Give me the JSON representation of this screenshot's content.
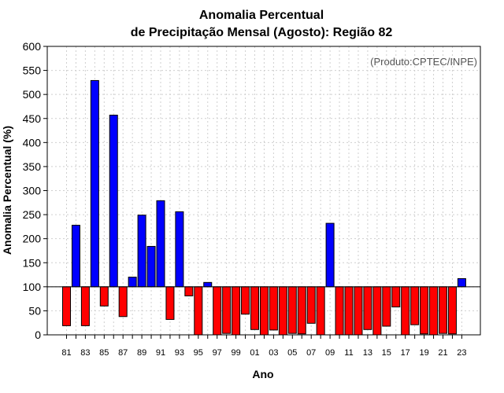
{
  "chart_data": {
    "type": "bar",
    "title_line1": "Anomalia Percentual",
    "title_line2": "de Precipitação Mensal (Agosto): Região 82",
    "source": "(Produto:CPTEC/INPE)",
    "xlabel": "Ano",
    "ylabel": "Anomalia Percentual (%)",
    "ylim": [
      0,
      600
    ],
    "yticks": [
      0,
      50,
      100,
      150,
      200,
      250,
      300,
      350,
      400,
      450,
      500,
      550,
      600
    ],
    "baseline": 100,
    "categories": [
      "81",
      "82",
      "83",
      "84",
      "85",
      "86",
      "87",
      "88",
      "89",
      "90",
      "91",
      "92",
      "93",
      "94",
      "95",
      "96",
      "97",
      "98",
      "99",
      "00",
      "01",
      "02",
      "03",
      "04",
      "05",
      "06",
      "07",
      "08",
      "09",
      "10",
      "11",
      "12",
      "13",
      "14",
      "15",
      "16",
      "17",
      "18",
      "19",
      "20",
      "21",
      "22",
      "23"
    ],
    "xtick_labels": [
      "81",
      "83",
      "85",
      "87",
      "89",
      "91",
      "93",
      "95",
      "97",
      "99",
      "01",
      "03",
      "05",
      "07",
      "09",
      "11",
      "13",
      "15",
      "17",
      "19",
      "21",
      "23"
    ],
    "values": [
      19,
      228,
      19,
      529,
      60,
      457,
      38,
      120,
      249,
      184,
      279,
      32,
      256,
      81,
      0,
      109,
      0,
      3,
      0,
      43,
      11,
      0,
      10,
      0,
      3,
      2,
      24,
      0,
      232,
      0,
      0,
      0,
      11,
      0,
      18,
      58,
      0,
      21,
      2,
      0,
      3,
      2,
      117
    ],
    "colors": {
      "above": "#0000ff",
      "below": "#ff0000"
    },
    "grid": true
  }
}
